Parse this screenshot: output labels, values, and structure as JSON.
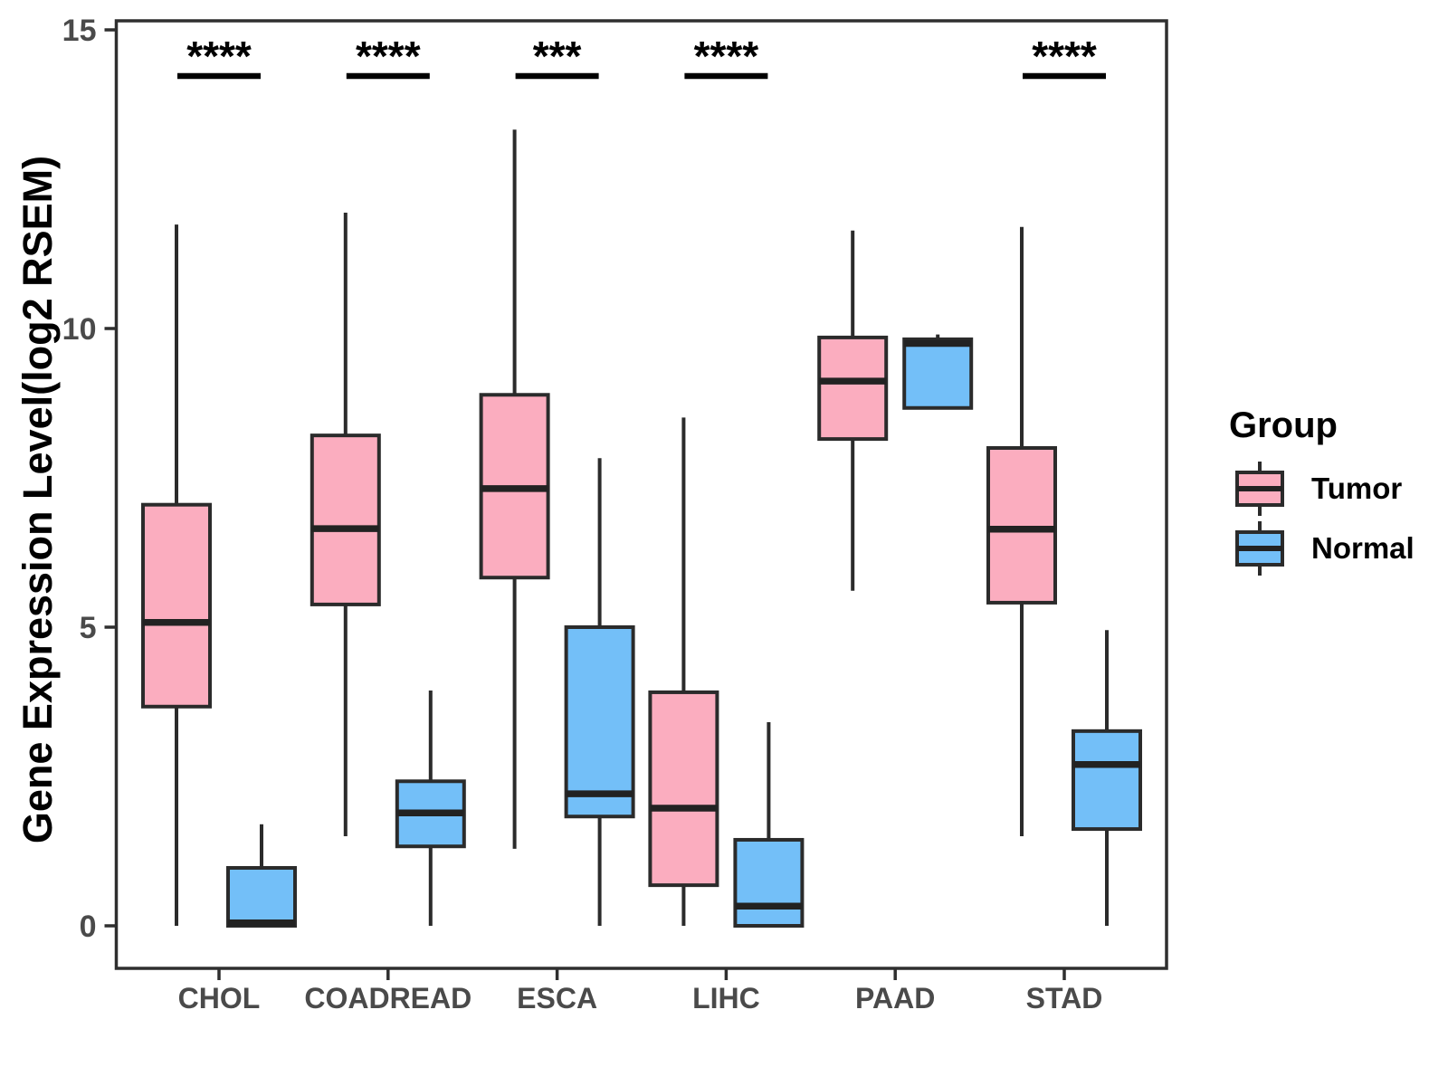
{
  "chart_data": {
    "type": "grouped_boxplot",
    "title": "",
    "xlabel": "",
    "ylabel": "Gene Expression Level(log2 RSEM)",
    "ylim": [
      0,
      15
    ],
    "yticks": [
      0,
      5,
      10,
      15
    ],
    "grid": "off",
    "categories": [
      "CHOL",
      "COADREAD",
      "ESCA",
      "LIHC",
      "PAAD",
      "STAD"
    ],
    "groups": [
      {
        "name": "Tumor",
        "color": "#FBADBF"
      },
      {
        "name": "Normal",
        "color": "#73BFF8"
      }
    ],
    "legend": {
      "title": "Group",
      "position": "right"
    },
    "significance": [
      {
        "category": "CHOL",
        "label": "****"
      },
      {
        "category": "COADREAD",
        "label": "****"
      },
      {
        "category": "ESCA",
        "label": "***"
      },
      {
        "category": "LIHC",
        "label": "****"
      },
      {
        "category": "STAD",
        "label": "****"
      }
    ],
    "boxes": {
      "Tumor": [
        {
          "category": "CHOL",
          "whisker_low": 0.0,
          "q1": 3.67,
          "median": 5.08,
          "q3": 7.05,
          "whisker_high": 11.74
        },
        {
          "category": "COADREAD",
          "whisker_low": 1.5,
          "q1": 5.38,
          "median": 6.65,
          "q3": 8.21,
          "whisker_high": 11.94
        },
        {
          "category": "ESCA",
          "whisker_low": 1.29,
          "q1": 5.83,
          "median": 7.32,
          "q3": 8.89,
          "whisker_high": 13.33
        },
        {
          "category": "LIHC",
          "whisker_low": 0.0,
          "q1": 0.68,
          "median": 1.97,
          "q3": 3.91,
          "whisker_high": 8.51
        },
        {
          "category": "PAAD",
          "whisker_low": 5.61,
          "q1": 8.15,
          "median": 9.12,
          "q3": 9.85,
          "whisker_high": 11.64
        },
        {
          "category": "STAD",
          "whisker_low": 1.5,
          "q1": 5.41,
          "median": 6.64,
          "q3": 8.0,
          "whisker_high": 11.7
        }
      ],
      "Normal": [
        {
          "category": "CHOL",
          "whisker_low": 0.0,
          "q1": 0.0,
          "median": 0.05,
          "q3": 0.97,
          "whisker_high": 1.7
        },
        {
          "category": "COADREAD",
          "whisker_low": 0.0,
          "q1": 1.33,
          "median": 1.89,
          "q3": 2.42,
          "whisker_high": 3.94
        },
        {
          "category": "ESCA",
          "whisker_low": 0.0,
          "q1": 1.83,
          "median": 2.21,
          "q3": 5.0,
          "whisker_high": 7.83
        },
        {
          "category": "LIHC",
          "whisker_low": 0.0,
          "q1": 0.0,
          "median": 0.33,
          "q3": 1.44,
          "whisker_high": 3.41
        },
        {
          "category": "PAAD",
          "whisker_low": 8.67,
          "q1": 8.67,
          "median": 9.75,
          "q3": 9.82,
          "whisker_high": 9.9
        },
        {
          "category": "STAD",
          "whisker_low": 0.0,
          "q1": 1.62,
          "median": 2.7,
          "q3": 3.26,
          "whisker_high": 4.95
        }
      ]
    },
    "style": {
      "box_stroke": "#2B2B2B",
      "median_color": "#222222",
      "axis_color": "#2F2F2F",
      "axis_text_color": "#4A4A4A",
      "significance_color": "#000000"
    }
  }
}
